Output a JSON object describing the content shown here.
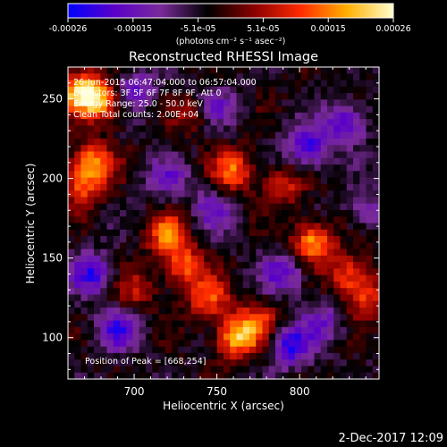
{
  "chart_data": {
    "type": "heatmap",
    "title": "Reconstructed RHESSI Image",
    "xlabel": "Heliocentric X (arcsec)",
    "ylabel": "Heliocentric Y (arcsec)",
    "xlim": [
      660,
      848
    ],
    "ylim": [
      74,
      270
    ],
    "x_ticks": [
      700,
      750,
      800
    ],
    "y_ticks": [
      100,
      150,
      200,
      250
    ],
    "colorbar": {
      "ticks": [
        "-0.00026",
        "-0.00015",
        "-5.1e-05",
        "5.1e-05",
        "0.00015",
        "0.00026"
      ],
      "units": "(photons cm⁻² s⁻¹ asec⁻²)",
      "vmin": -0.00026,
      "vmax": 0.00026,
      "colors": [
        "#0000ff",
        "#5a00c8",
        "#7a2a9a",
        "#000000",
        "#8a0000",
        "#ff2a00",
        "#ffb000",
        "#ffffd0"
      ]
    },
    "annotations": {
      "time_range": "26-Jun-2015 06:47:04.000 to 06:57:04.000",
      "detectors": "Detectors: 3F 5F 6F 7F 8F 9F, Att 0",
      "energy": "Energy Range: 25.0 - 50.0 keV",
      "clean": "Clean    Total counts: 2.00E+04",
      "peak": "Position of Peak = [668,254]"
    },
    "peak_position": [
      668,
      254
    ],
    "blobs": [
      {
        "x": 668,
        "y": 254,
        "amp": 1.6
      },
      {
        "x": 682,
        "y": 248,
        "amp": 1.1
      },
      {
        "x": 675,
        "y": 210,
        "amp": 1.2
      },
      {
        "x": 668,
        "y": 195,
        "amp": 0.9
      },
      {
        "x": 720,
        "y": 165,
        "amp": 1.1
      },
      {
        "x": 730,
        "y": 145,
        "amp": 1.0
      },
      {
        "x": 745,
        "y": 125,
        "amp": 1.0
      },
      {
        "x": 762,
        "y": 100,
        "amp": 1.4
      },
      {
        "x": 775,
        "y": 110,
        "amp": 0.8
      },
      {
        "x": 760,
        "y": 205,
        "amp": 1.1
      },
      {
        "x": 790,
        "y": 195,
        "amp": 0.7
      },
      {
        "x": 808,
        "y": 160,
        "amp": 1.3
      },
      {
        "x": 830,
        "y": 140,
        "amp": 0.9
      },
      {
        "x": 840,
        "y": 125,
        "amp": 0.8
      },
      {
        "x": 700,
        "y": 130,
        "amp": 0.6
      },
      {
        "x": 735,
        "y": 240,
        "amp": 0.5
      },
      {
        "x": 700,
        "y": 255,
        "amp": -0.8
      },
      {
        "x": 750,
        "y": 245,
        "amp": -0.6
      },
      {
        "x": 675,
        "y": 140,
        "amp": -1.0
      },
      {
        "x": 690,
        "y": 105,
        "amp": -0.9
      },
      {
        "x": 748,
        "y": 180,
        "amp": -0.7
      },
      {
        "x": 805,
        "y": 220,
        "amp": -1.1
      },
      {
        "x": 828,
        "y": 235,
        "amp": -0.9
      },
      {
        "x": 790,
        "y": 140,
        "amp": -0.8
      },
      {
        "x": 795,
        "y": 95,
        "amp": -1.1
      },
      {
        "x": 720,
        "y": 200,
        "amp": -0.6
      },
      {
        "x": 840,
        "y": 180,
        "amp": -0.5
      },
      {
        "x": 815,
        "y": 110,
        "amp": -0.6
      }
    ]
  },
  "footer": {
    "date": "2-Dec-2017 12:09"
  }
}
